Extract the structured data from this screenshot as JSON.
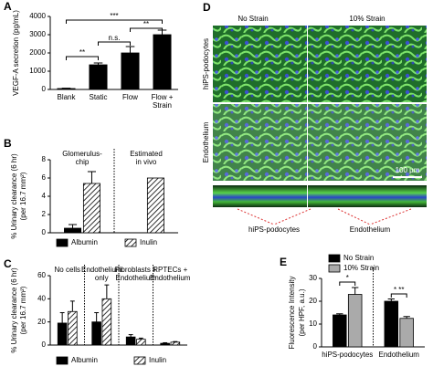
{
  "panel_d": {
    "label": "D",
    "columns": [
      "No Strain",
      "10% Strain"
    ],
    "rows": [
      "hiPS-podocytes",
      "Endothelium"
    ],
    "scale_bar": "100 µm",
    "strip_labels": [
      "hiPS-podocytes",
      "Endothelium"
    ]
  },
  "chart_data": [
    {
      "type": "bar",
      "panel": "A",
      "ylabel": "VEGF-A secretion (pg/mL)",
      "categories": [
        "Blank",
        "Static",
        "Flow",
        [
          "Flow +",
          "Strain"
        ]
      ],
      "series": [
        {
          "color": "#000000",
          "values": [
            50,
            1350,
            2000,
            3000
          ],
          "errors": [
            20,
            100,
            350,
            250
          ]
        }
      ],
      "ylim": [
        0,
        4000
      ],
      "yticks": [
        0,
        1000,
        2000,
        3000,
        4000
      ],
      "annotations": [
        "**",
        "n.s.",
        "***",
        "**"
      ]
    },
    {
      "type": "bar",
      "panel": "B",
      "ylabel": [
        "% Urinary clearance (6 hr)",
        "(per 16.7 mm²)"
      ],
      "categories": [
        [
          "Glomerulus-",
          "chip"
        ],
        [
          "Estimated",
          "in vivo"
        ]
      ],
      "series": [
        {
          "name": "Albumin",
          "color": "#000000",
          "values": [
            0.5,
            0
          ],
          "errors": [
            0.4,
            0
          ]
        },
        {
          "name": "Inulin",
          "color": "#ffffff",
          "hatch": true,
          "values": [
            5.4,
            6.0
          ],
          "errors": [
            1.3,
            0
          ]
        }
      ],
      "ylim": [
        0,
        8
      ],
      "yticks": [
        0,
        2,
        4,
        6,
        8
      ]
    },
    {
      "type": "bar",
      "panel": "C",
      "ylabel": [
        "% Urinary clearance (6 hr)",
        "(per 16.7 mm²)"
      ],
      "categories": [
        [
          "No cells"
        ],
        [
          "Endothelium",
          "only"
        ],
        [
          "Fibroblasts +",
          "Endothelium"
        ],
        [
          "RPTECs +",
          "Endothelium"
        ]
      ],
      "series": [
        {
          "name": "Albumin",
          "color": "#000000",
          "values": [
            19,
            20,
            7,
            1.5
          ],
          "errors": [
            9,
            8,
            2,
            0.5
          ]
        },
        {
          "name": "Inulin",
          "color": "#ffffff",
          "hatch": true,
          "values": [
            29,
            40,
            5,
            2.5
          ],
          "errors": [
            9,
            12,
            1,
            0.5
          ]
        }
      ],
      "ylim": [
        0,
        60
      ],
      "yticks": [
        0,
        20,
        40,
        60
      ]
    },
    {
      "type": "bar",
      "panel": "E",
      "ylabel": [
        "Fluorescence Intensity",
        "(per HPF, a.u.)"
      ],
      "categories": [
        "hiPS-podocytes",
        "Endothelium"
      ],
      "series": [
        {
          "name": "No Strain",
          "color": "#000000",
          "values": [
            14,
            20
          ],
          "errors": [
            0.5,
            1
          ]
        },
        {
          "name": "10% Strain",
          "color": "#aaaaaa",
          "values": [
            23,
            12.5
          ],
          "errors": [
            3,
            0.8
          ]
        }
      ],
      "ylim": [
        0,
        30
      ],
      "yticks": [
        0,
        10,
        20,
        30
      ],
      "annotations": [
        "*",
        "* **"
      ]
    }
  ]
}
